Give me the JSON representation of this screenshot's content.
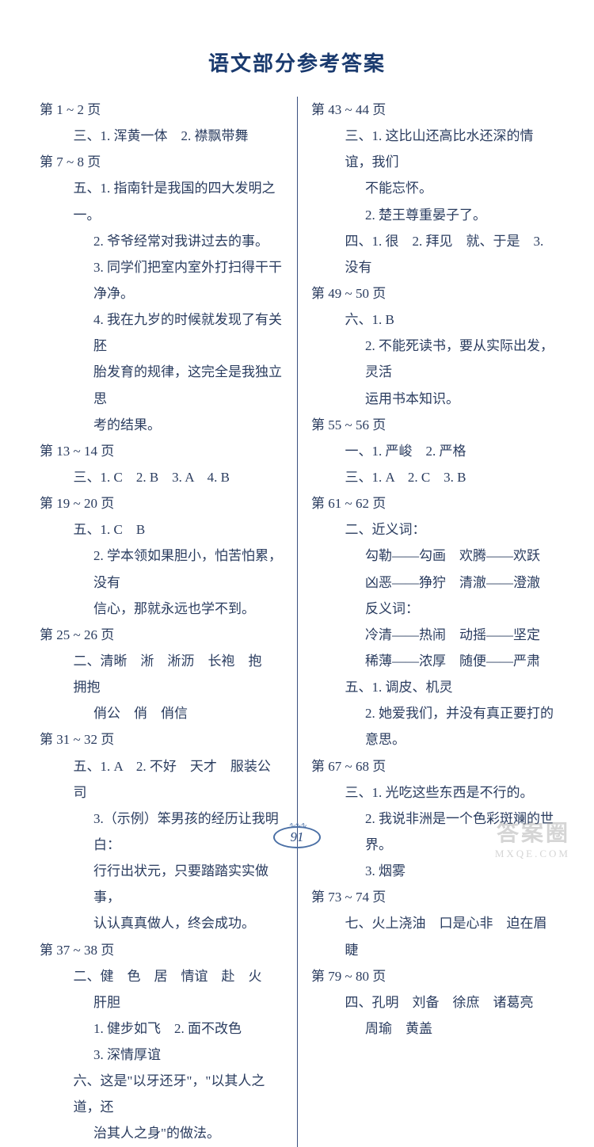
{
  "title": "语文部分参考答案",
  "page_number": "91",
  "colors": {
    "text": "#2a3c5f",
    "title": "#1a3a6e",
    "divider": "#3a5080",
    "ornament": "#4a6fa5",
    "background": "#ffffff",
    "watermark": "#888888"
  },
  "typography": {
    "body_fontsize": 17,
    "title_fontsize": 26,
    "line_height": 1.95,
    "font_family": "KaiTi"
  },
  "left_column": [
    {
      "type": "heading",
      "text": "第 1 ~ 2 页"
    },
    {
      "type": "line",
      "text": "三、1. 浑黄一体　2. 襟飘带舞"
    },
    {
      "type": "heading",
      "text": "第 7 ~ 8 页"
    },
    {
      "type": "line",
      "text": "五、1. 指南针是我国的四大发明之一。"
    },
    {
      "type": "line2",
      "text": "2. 爷爷经常对我讲过去的事。"
    },
    {
      "type": "line2",
      "text": "3. 同学们把室内室外打扫得干干"
    },
    {
      "type": "cont",
      "text": "净净。"
    },
    {
      "type": "line2",
      "text": "4. 我在九岁的时候就发现了有关胚"
    },
    {
      "type": "cont",
      "text": "胎发育的规律，这完全是我独立思"
    },
    {
      "type": "cont",
      "text": "考的结果。"
    },
    {
      "type": "heading",
      "text": "第 13 ~ 14 页"
    },
    {
      "type": "line",
      "text": "三、1. C　2. B　3. A　4. B"
    },
    {
      "type": "heading",
      "text": "第 19 ~ 20 页"
    },
    {
      "type": "line",
      "text": "五、1. C　B"
    },
    {
      "type": "line2",
      "text": "2. 学本领如果胆小，怕苦怕累，没有"
    },
    {
      "type": "cont",
      "text": "信心，那就永远也学不到。"
    },
    {
      "type": "heading",
      "text": "第 25 ~ 26 页"
    },
    {
      "type": "line",
      "text": "二、清晰　淅　淅沥　长袍　抱　拥抱"
    },
    {
      "type": "line2",
      "text": "俏公　俏　俏信"
    },
    {
      "type": "heading",
      "text": "第 31 ~ 32 页"
    },
    {
      "type": "line",
      "text": "五、1. A　2. 不好　天才　服装公司"
    },
    {
      "type": "line2",
      "text": "3.（示例）笨男孩的经历让我明白："
    },
    {
      "type": "cont",
      "text": "行行出状元，只要踏踏实实做事，"
    },
    {
      "type": "cont",
      "text": "认认真真做人，终会成功。"
    },
    {
      "type": "heading",
      "text": "第 37 ~ 38 页"
    },
    {
      "type": "line",
      "text": "二、健　色　居　情谊　赴　火"
    },
    {
      "type": "line2",
      "text": "肝胆"
    },
    {
      "type": "line2",
      "text": "1. 健步如飞　2. 面不改色"
    },
    {
      "type": "line2",
      "text": "3. 深情厚谊"
    },
    {
      "type": "line",
      "text": "六、这是\"以牙还牙\"，\"以其人之道，还"
    },
    {
      "type": "line2",
      "text": "治其人之身\"的做法。"
    }
  ],
  "right_column": [
    {
      "type": "heading",
      "text": "第 43 ~ 44 页"
    },
    {
      "type": "line",
      "text": "三、1. 这比山还高比水还深的情谊，我们"
    },
    {
      "type": "cont",
      "text": "不能忘怀。"
    },
    {
      "type": "line2",
      "text": "2. 楚王尊重晏子了。"
    },
    {
      "type": "line",
      "text": "四、1. 很　2. 拜见　就、于是　3. 没有"
    },
    {
      "type": "heading",
      "text": "第 49 ~ 50 页"
    },
    {
      "type": "line",
      "text": "六、1. B"
    },
    {
      "type": "line2",
      "text": "2. 不能死读书，要从实际出发，灵活"
    },
    {
      "type": "cont",
      "text": "运用书本知识。"
    },
    {
      "type": "heading",
      "text": "第 55 ~ 56 页"
    },
    {
      "type": "line",
      "text": "一、1. 严峻　2. 严格"
    },
    {
      "type": "line",
      "text": "三、1. A　2. C　3. B"
    },
    {
      "type": "heading",
      "text": "第 61 ~ 62 页"
    },
    {
      "type": "line",
      "text": "二、近义词："
    },
    {
      "type": "line2",
      "text": "勾勒——勾画　欢腾——欢跃"
    },
    {
      "type": "line2",
      "text": "凶恶——狰狞　清澈——澄澈"
    },
    {
      "type": "line2",
      "text": "反义词："
    },
    {
      "type": "line2",
      "text": "冷清——热闹　动摇——坚定"
    },
    {
      "type": "line2",
      "text": "稀薄——浓厚　随便——严肃"
    },
    {
      "type": "line",
      "text": "五、1. 调皮、机灵"
    },
    {
      "type": "line2",
      "text": "2. 她爱我们，并没有真正要打的"
    },
    {
      "type": "cont",
      "text": "意思。"
    },
    {
      "type": "heading",
      "text": "第 67 ~ 68 页"
    },
    {
      "type": "line",
      "text": "三、1. 光吃这些东西是不行的。"
    },
    {
      "type": "line2",
      "text": "2. 我说非洲是一个色彩斑斓的世界。"
    },
    {
      "type": "line2",
      "text": "3. 烟雾"
    },
    {
      "type": "heading",
      "text": "第 73 ~ 74 页"
    },
    {
      "type": "line",
      "text": "七、火上浇油　口是心非　迫在眉睫"
    },
    {
      "type": "heading",
      "text": "第 79 ~ 80 页"
    },
    {
      "type": "line",
      "text": "四、孔明　刘备　徐庶　诸葛亮"
    },
    {
      "type": "line2",
      "text": "周瑜　黄盖"
    }
  ],
  "watermark": {
    "main": "答案圈",
    "sub": "MXQE.COM"
  }
}
